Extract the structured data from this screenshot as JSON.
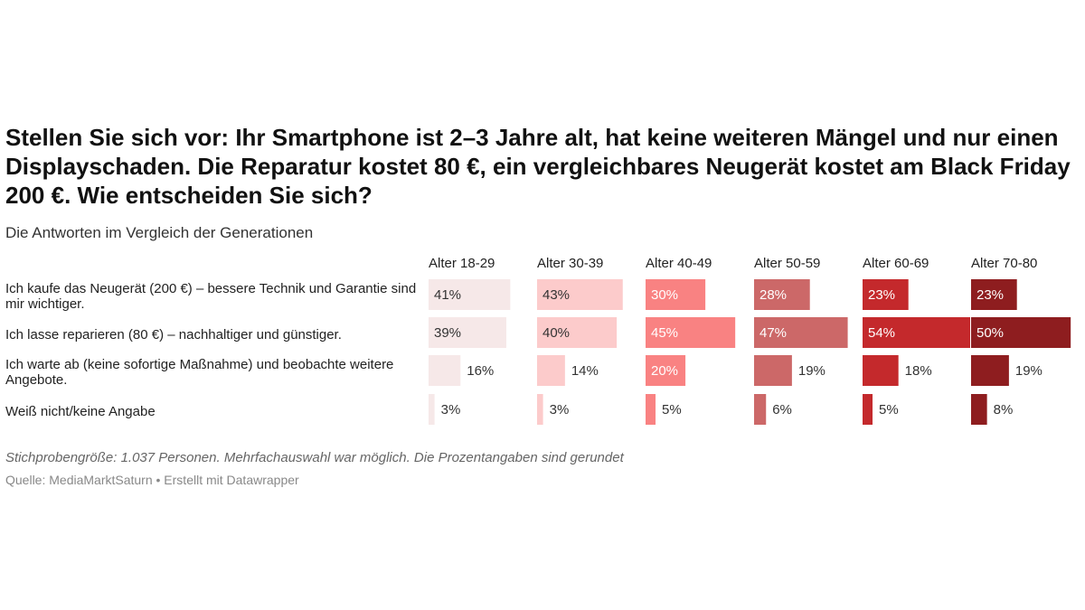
{
  "chart_data": {
    "type": "split-bar",
    "title": "Stellen Sie sich vor: Ihr Smartphone ist 2–3 Jahre alt, hat keine weiteren Mängel und nur einen Displayschaden. Die Reparatur kostet 80 €, ein vergleichbares Neugerät kostet am Black Friday 200 €. Wie entscheiden Sie sich?",
    "subtitle": "Die Antworten im Vergleich der Generationen",
    "categories": [
      "Ich kaufe das Neugerät (200 €) – bessere Technik und Garantie sind mir wichtiger.",
      "Ich lasse reparieren (80 €) – nachhaltiger und günstiger.",
      "Ich warte ab (keine sofortige Maßnahme) und beobachte weitere Angebote.",
      "Weiß nicht/keine Angabe"
    ],
    "series": [
      {
        "name": "Alter 18-29",
        "color": "#f6e8e8",
        "values": [
          41,
          39,
          16,
          3
        ],
        "value_labels": [
          "41%",
          "39%",
          "16%",
          "3%"
        ]
      },
      {
        "name": "Alter 30-39",
        "color": "#fccbcb",
        "values": [
          43,
          40,
          14,
          3
        ],
        "value_labels": [
          "43%",
          "40%",
          "14%",
          "3%"
        ]
      },
      {
        "name": "Alter 40-49",
        "color": "#f98282",
        "values": [
          30,
          45,
          20,
          5
        ],
        "value_labels": [
          "30%",
          "45%",
          "20%",
          "5%"
        ]
      },
      {
        "name": "Alter 50-59",
        "color": "#cc6868",
        "values": [
          28,
          47,
          19,
          6
        ],
        "value_labels": [
          "28%",
          "47%",
          "19%",
          "6%"
        ]
      },
      {
        "name": "Alter 60-69",
        "color": "#c4292c",
        "values": [
          23,
          54,
          18,
          5
        ],
        "value_labels": [
          "23%",
          "54%",
          "18%",
          "5%"
        ]
      },
      {
        "name": "Alter 70-80",
        "color": "#8e1d1f",
        "values": [
          23,
          50,
          19,
          8
        ],
        "value_labels": [
          "23%",
          "50%",
          "19%",
          "8%"
        ]
      }
    ],
    "notes": "Stichprobengröße: 1.037 Personen. Mehrfachauswahl war möglich. Die Prozentangaben sind gerundet",
    "source": "Quelle: MediaMarktSaturn • Erstellt mit Datawrapper"
  }
}
